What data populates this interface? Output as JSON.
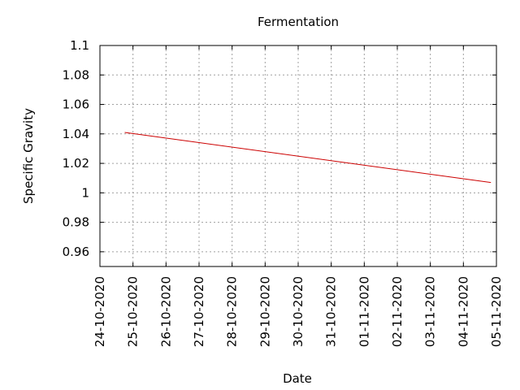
{
  "chart_data": {
    "type": "line",
    "title": "Fermentation",
    "xlabel": "Date",
    "ylabel": "Specific Gravity",
    "x_ticks": [
      "24-10-2020",
      "25-10-2020",
      "26-10-2020",
      "27-10-2020",
      "28-10-2020",
      "29-10-2020",
      "30-10-2020",
      "31-10-2020",
      "01-11-2020",
      "02-11-2020",
      "03-11-2020",
      "04-11-2020",
      "05-11-2020"
    ],
    "y_ticks": [
      "0.96",
      "0.98",
      "1",
      "1.02",
      "1.04",
      "1.06",
      "1.08",
      "1.1"
    ],
    "xlim": [
      "2020-10-24",
      "2020-11-05"
    ],
    "ylim": [
      0.95,
      1.1
    ],
    "grid": true,
    "series": [
      {
        "color": "#cc0000",
        "points": [
          {
            "x": "2020-10-24T18:00",
            "y": 1.041
          },
          {
            "x": "2020-11-04T20:00",
            "y": 1.007
          }
        ]
      }
    ]
  }
}
